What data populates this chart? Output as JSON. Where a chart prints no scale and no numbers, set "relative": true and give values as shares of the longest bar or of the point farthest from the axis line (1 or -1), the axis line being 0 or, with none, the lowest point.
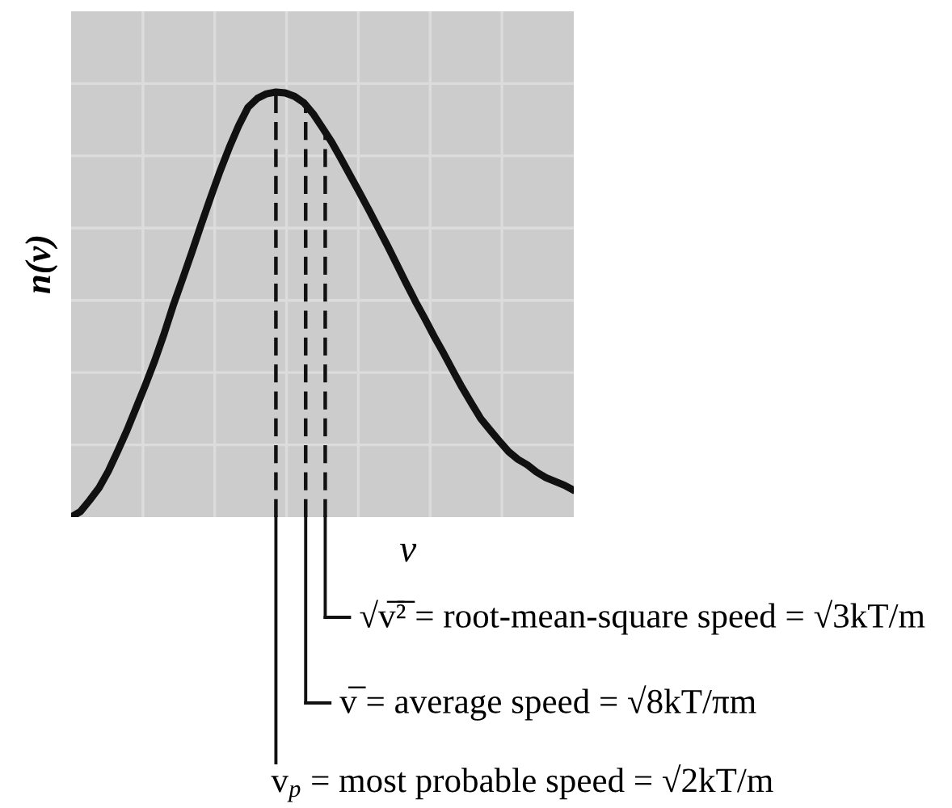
{
  "chart_data": {
    "type": "line",
    "relative": true,
    "xlabel": "v",
    "ylabel": "n(v)",
    "grid": true,
    "categories": [
      null,
      null,
      null,
      null,
      null,
      null,
      null,
      null,
      null,
      null,
      null,
      null,
      null,
      null,
      null,
      null,
      null,
      null,
      null,
      null,
      null,
      null,
      null,
      null,
      null,
      null,
      null,
      null,
      null,
      null,
      null,
      null,
      null,
      null,
      null,
      null,
      null,
      null,
      null,
      null,
      null,
      null,
      null,
      null,
      null,
      null,
      null,
      null,
      null,
      null,
      null,
      null,
      null,
      null,
      null
    ],
    "series": [
      {
        "color": "#111111",
        "values": [
          0.0,
          0.013,
          0.04,
          0.069,
          0.108,
          0.155,
          0.204,
          0.258,
          0.312,
          0.369,
          0.432,
          0.5,
          0.562,
          0.625,
          0.69,
          0.753,
          0.814,
          0.87,
          0.921,
          0.964,
          0.985,
          0.996,
          1.0,
          0.998,
          0.99,
          0.975,
          0.949,
          0.916,
          0.882,
          0.843,
          0.803,
          0.763,
          0.722,
          0.68,
          0.638,
          0.594,
          0.55,
          0.507,
          0.467,
          0.425,
          0.386,
          0.345,
          0.305,
          0.268,
          0.232,
          0.205,
          0.179,
          0.154,
          0.136,
          0.123,
          0.106,
          0.093,
          0.084,
          0.075,
          0.063
        ]
      }
    ],
    "annotations": [
      "√v̅²̅ = root-mean-square speed = √3kT/m",
      "v̅ = average speed = √8kT/πm",
      "v$_{p}$ = most probable speed = √2kT/m"
    ]
  }
}
